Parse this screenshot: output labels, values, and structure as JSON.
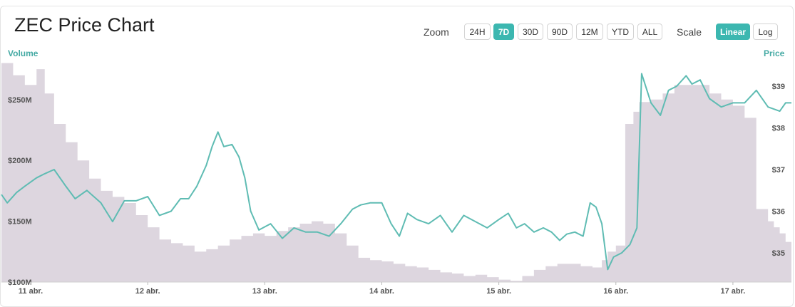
{
  "title": "ZEC Price Chart",
  "zoom": {
    "label": "Zoom",
    "options": [
      "24H",
      "7D",
      "30D",
      "90D",
      "12M",
      "YTD",
      "ALL"
    ],
    "selected": "7D"
  },
  "scale": {
    "label": "Scale",
    "options": [
      "Linear",
      "Log"
    ],
    "selected": "Linear"
  },
  "colors": {
    "accent": "#3cb7b0",
    "price_line": "#5fbcb3",
    "volume_fill": "#ddd6df"
  },
  "chart_data": {
    "type": "line",
    "left_axis_title": "Volume",
    "right_axis_title": "Price",
    "x_ticks": [
      "11 abr.",
      "12 abr.",
      "13 abr.",
      "14 abr.",
      "15 abr.",
      "16 abr.",
      "17 abr."
    ],
    "volume_ticks": [
      "$100M",
      "$150M",
      "$200M",
      "$250M"
    ],
    "volume_tick_values": [
      100,
      150,
      200,
      250
    ],
    "price_ticks": [
      "$35",
      "$36",
      "$37",
      "$38",
      "$39"
    ],
    "price_tick_values": [
      35,
      36,
      37,
      38,
      39
    ],
    "x_range_days": [
      10.75,
      17.5
    ],
    "volume_ylim_millions": [
      100,
      285
    ],
    "price_ylim": [
      34.3,
      39.7
    ],
    "series": [
      {
        "name": "Price",
        "x_days": [
          10.75,
          10.8,
          10.88,
          10.95,
          11.05,
          11.12,
          11.2,
          11.3,
          11.38,
          11.48,
          11.6,
          11.7,
          11.8,
          11.9,
          12.0,
          12.1,
          12.2,
          12.28,
          12.35,
          12.42,
          12.5,
          12.55,
          12.6,
          12.65,
          12.72,
          12.78,
          12.83,
          12.88,
          12.95,
          13.05,
          13.15,
          13.25,
          13.35,
          13.45,
          13.55,
          13.65,
          13.75,
          13.82,
          13.9,
          14.0,
          14.08,
          14.15,
          14.22,
          14.3,
          14.4,
          14.5,
          14.6,
          14.7,
          14.8,
          14.9,
          15.0,
          15.08,
          15.15,
          15.22,
          15.3,
          15.38,
          15.45,
          15.52,
          15.58,
          15.65,
          15.72,
          15.78,
          15.83,
          15.88,
          15.93,
          15.98,
          16.05,
          16.12,
          16.18,
          16.22,
          16.3,
          16.38,
          16.45,
          16.52,
          16.6,
          16.65,
          16.72,
          16.8,
          16.9,
          17.0,
          17.1,
          17.2,
          17.3,
          17.4,
          17.45,
          17.5
        ],
        "values": [
          36.4,
          36.2,
          36.45,
          36.6,
          36.8,
          36.9,
          37.0,
          36.6,
          36.3,
          36.5,
          36.2,
          35.75,
          36.25,
          36.25,
          36.35,
          35.9,
          36.0,
          36.3,
          36.3,
          36.6,
          37.1,
          37.55,
          37.9,
          37.55,
          37.6,
          37.3,
          36.8,
          36.0,
          35.55,
          35.7,
          35.35,
          35.6,
          35.5,
          35.5,
          35.4,
          35.7,
          36.05,
          36.15,
          36.2,
          36.2,
          35.7,
          35.4,
          35.95,
          35.8,
          35.7,
          35.9,
          35.5,
          35.9,
          35.75,
          35.6,
          35.8,
          35.95,
          35.6,
          35.7,
          35.5,
          35.6,
          35.5,
          35.3,
          35.45,
          35.5,
          35.4,
          36.2,
          36.1,
          35.7,
          34.6,
          34.9,
          35.0,
          35.2,
          35.6,
          39.3,
          38.6,
          38.3,
          38.9,
          39.0,
          39.25,
          39.05,
          39.15,
          38.7,
          38.5,
          38.6,
          38.6,
          38.9,
          38.5,
          38.4,
          38.6,
          38.6
        ]
      },
      {
        "name": "Volume",
        "x_days": [
          10.75,
          10.85,
          10.95,
          11.05,
          11.12,
          11.2,
          11.3,
          11.4,
          11.5,
          11.6,
          11.7,
          11.8,
          11.9,
          12.0,
          12.1,
          12.2,
          12.3,
          12.4,
          12.5,
          12.6,
          12.7,
          12.8,
          12.9,
          13.0,
          13.1,
          13.2,
          13.3,
          13.4,
          13.5,
          13.6,
          13.7,
          13.8,
          13.9,
          14.0,
          14.1,
          14.2,
          14.3,
          14.4,
          14.5,
          14.6,
          14.7,
          14.8,
          14.9,
          15.0,
          15.1,
          15.2,
          15.3,
          15.4,
          15.5,
          15.6,
          15.7,
          15.8,
          15.88,
          15.93,
          16.0,
          16.08,
          16.15,
          16.2,
          16.3,
          16.4,
          16.5,
          16.6,
          16.7,
          16.8,
          16.9,
          17.0,
          17.1,
          17.2,
          17.3,
          17.35,
          17.4,
          17.45,
          17.5
        ],
        "values": [
          280,
          270,
          262,
          275,
          255,
          230,
          215,
          200,
          185,
          175,
          170,
          165,
          155,
          145,
          135,
          132,
          130,
          125,
          127,
          130,
          135,
          138,
          140,
          138,
          142,
          145,
          148,
          150,
          148,
          140,
          130,
          120,
          118,
          117,
          115,
          113,
          112,
          110,
          108,
          107,
          105,
          106,
          104,
          102,
          101,
          105,
          110,
          113,
          115,
          115,
          113,
          112,
          118,
          125,
          130,
          230,
          240,
          248,
          250,
          255,
          262,
          262,
          262,
          255,
          250,
          245,
          235,
          160,
          150,
          145,
          140,
          133,
          130
        ]
      }
    ]
  }
}
